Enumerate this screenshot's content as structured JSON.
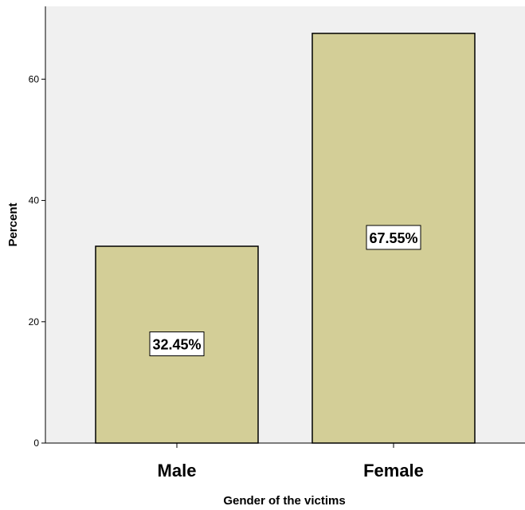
{
  "chart_data": {
    "type": "bar",
    "xlabel": "Gender of the victims",
    "ylabel": "Percent",
    "categories": [
      "Male",
      "Female"
    ],
    "values": [
      32.45,
      67.55
    ],
    "data_labels": [
      "32.45%",
      "67.55%"
    ],
    "ylim": [
      0,
      72
    ],
    "yticks": [
      0,
      20,
      40,
      60
    ],
    "grid": false,
    "legend": "none",
    "colors": {
      "plot_background": "#f0f0f0",
      "bar_fill": "#d3ce97",
      "bar_stroke": "#000000",
      "axis": "#000000"
    }
  }
}
